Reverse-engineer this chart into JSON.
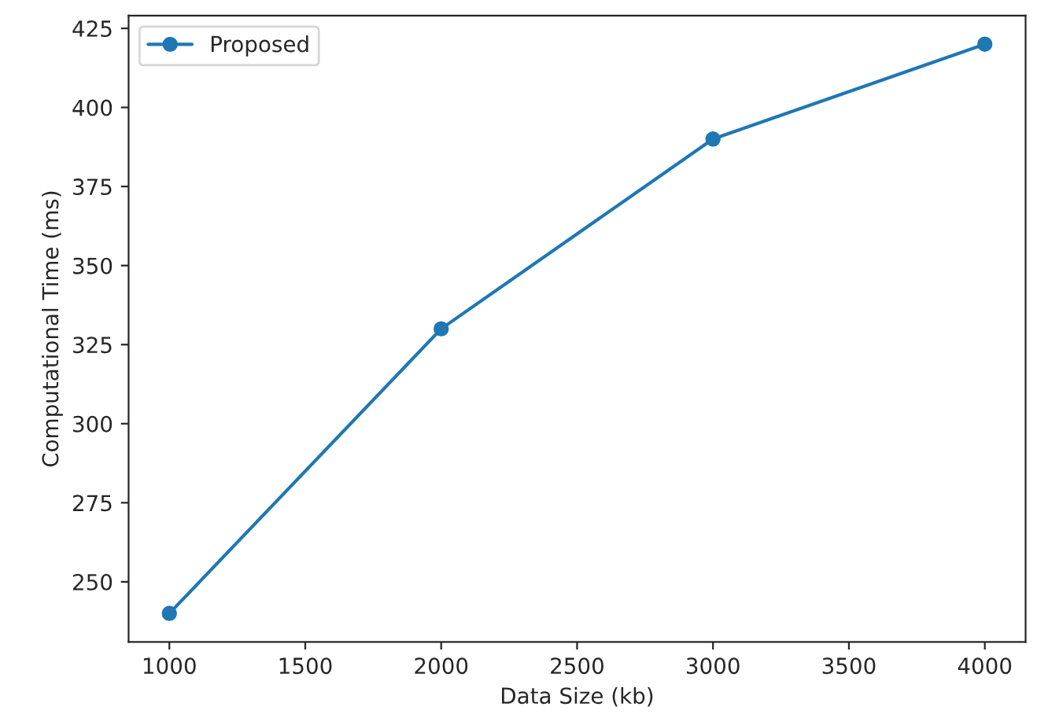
{
  "chart_data": {
    "type": "line",
    "xlabel": "Data Size (kb)",
    "ylabel": "Computational Time (ms)",
    "x": [
      1000,
      2000,
      3000,
      4000
    ],
    "series": [
      {
        "name": "Proposed",
        "color": "#1f77b4",
        "values": [
          240,
          330,
          390,
          420
        ]
      }
    ],
    "xlim": [
      850,
      4150
    ],
    "xticks": [
      1000,
      1500,
      2000,
      2500,
      3000,
      3500,
      4000
    ],
    "ylim": [
      231,
      429
    ],
    "yticks": [
      250,
      275,
      300,
      325,
      350,
      375,
      400,
      425
    ],
    "marker": "circle",
    "line_style": "solid",
    "legend": "top left",
    "grid": false
  }
}
